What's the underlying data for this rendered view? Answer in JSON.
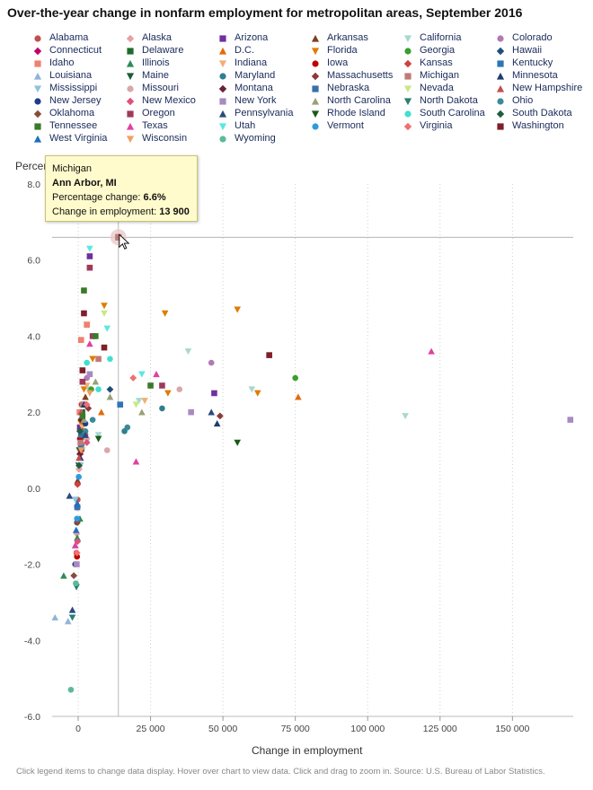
{
  "title": "Over-the-year change in nonfarm employment for metropolitan areas, September 2016",
  "footer_note": "Click legend items to change data display. Hover over chart to view data. Click and drag to zoom in. Source: U.S. Bureau of Labor Statistics.",
  "tooltip": {
    "state": "Michigan",
    "area": "Ann Arbor, MI",
    "pct_label": "Percentage change: ",
    "pct_value": "6.6%",
    "emp_label": "Change in employment: ",
    "emp_value": "13 900"
  },
  "chart_data": {
    "type": "scatter",
    "title": "Over-the-year change in nonfarm employment for metropolitan areas, September 2016",
    "xlabel": "Change in employment",
    "ylabel": "Percent",
    "xlim": [
      -9000,
      171000
    ],
    "ylim": [
      -6.0,
      8.0
    ],
    "x_ticks": [
      "0",
      "25 000",
      "50 000",
      "75 000",
      "100 000",
      "125 000",
      "150 000"
    ],
    "x_tick_values": [
      0,
      25000,
      50000,
      75000,
      100000,
      125000,
      150000
    ],
    "y_ticks": [
      "8.0",
      "6.0",
      "4.0",
      "2.0",
      "0.0",
      "-2.0",
      "-4.0",
      "-6.0"
    ],
    "y_tick_values": [
      8,
      6,
      4,
      2,
      0,
      -2,
      -4,
      -6
    ],
    "highlighted_point": {
      "series": "Michigan",
      "x": 13900,
      "y": 6.6
    },
    "crosshair": {
      "x": 13900,
      "y": 6.6
    },
    "series": [
      {
        "name": "Alabama",
        "color": "#c0504d",
        "marker": "circle",
        "points": [
          [
            1200,
            1.0
          ],
          [
            400,
            0.6
          ],
          [
            -200,
            -0.3
          ],
          [
            -600,
            -1.7
          ],
          [
            2500,
            1.4
          ]
        ]
      },
      {
        "name": "Alaska",
        "color": "#e8a0a8",
        "marker": "diamond",
        "points": [
          [
            -500,
            -1.2
          ],
          [
            300,
            0.5
          ]
        ]
      },
      {
        "name": "Arizona",
        "color": "#7030a0",
        "marker": "square",
        "points": [
          [
            4000,
            6.1
          ],
          [
            47000,
            2.5
          ],
          [
            600,
            1.6
          ],
          [
            2000,
            2.2
          ]
        ]
      },
      {
        "name": "Arkansas",
        "color": "#7f3f1f",
        "marker": "triangle",
        "points": [
          [
            2500,
            2.4
          ],
          [
            600,
            1.1
          ],
          [
            -200,
            0.2
          ],
          [
            1300,
            1.9
          ]
        ]
      },
      {
        "name": "California",
        "color": "#a8d8d0",
        "marker": "triangle-down",
        "points": [
          [
            38000,
            3.6
          ],
          [
            60000,
            2.6
          ],
          [
            113000,
            1.9
          ],
          [
            21000,
            2.3
          ],
          [
            3500,
            2.6
          ],
          [
            7000,
            1.4
          ],
          [
            1500,
            1.0
          ]
        ]
      },
      {
        "name": "Colorado",
        "color": "#b27ab2",
        "marker": "circle",
        "points": [
          [
            46000,
            3.3
          ],
          [
            3000,
            2.9
          ],
          [
            1500,
            1.5
          ]
        ]
      },
      {
        "name": "Connecticut",
        "color": "#c0006a",
        "marker": "diamond",
        "points": [
          [
            -300,
            -0.5
          ],
          [
            700,
            0.9
          ]
        ]
      },
      {
        "name": "Delaware",
        "color": "#1e6b2e",
        "marker": "square",
        "points": [
          [
            1400,
            2.0
          ]
        ]
      },
      {
        "name": "D.C.",
        "color": "#e36c09",
        "marker": "triangle",
        "points": [
          [
            76000,
            2.4
          ],
          [
            8000,
            2.0
          ]
        ]
      },
      {
        "name": "Florida",
        "color": "#e07b00",
        "marker": "triangle-down",
        "points": [
          [
            55000,
            4.7
          ],
          [
            30000,
            4.6
          ],
          [
            62000,
            2.5
          ],
          [
            31000,
            2.5
          ],
          [
            3000,
            4.3
          ],
          [
            9000,
            4.8
          ],
          [
            5000,
            3.4
          ],
          [
            2000,
            2.6
          ],
          [
            1000,
            1.7
          ]
        ]
      },
      {
        "name": "Georgia",
        "color": "#3a9e2e",
        "marker": "circle",
        "points": [
          [
            75000,
            2.9
          ],
          [
            4500,
            2.6
          ],
          [
            1000,
            1.3
          ]
        ]
      },
      {
        "name": "Hawaii",
        "color": "#1f4e79",
        "marker": "diamond",
        "points": [
          [
            11000,
            2.6
          ],
          [
            1500,
            1.8
          ]
        ]
      },
      {
        "name": "Idaho",
        "color": "#f08070",
        "marker": "square",
        "points": [
          [
            1000,
            3.9
          ],
          [
            3000,
            4.3
          ],
          [
            500,
            2.0
          ]
        ]
      },
      {
        "name": "Illinois",
        "color": "#2e8b57",
        "marker": "triangle",
        "points": [
          [
            -5000,
            -2.3
          ],
          [
            600,
            -0.8
          ],
          [
            1200,
            1.2
          ],
          [
            -300,
            -1.3
          ]
        ]
      },
      {
        "name": "Indiana",
        "color": "#f0b070",
        "marker": "triangle-down",
        "points": [
          [
            23000,
            2.3
          ],
          [
            3000,
            2.7
          ],
          [
            1500,
            1.6
          ],
          [
            800,
            0.9
          ]
        ]
      },
      {
        "name": "Iowa",
        "color": "#c00000",
        "marker": "circle",
        "points": [
          [
            1200,
            2.2
          ],
          [
            600,
            1.3
          ],
          [
            -400,
            -1.8
          ]
        ]
      },
      {
        "name": "Kansas",
        "color": "#d04040",
        "marker": "diamond",
        "points": [
          [
            1500,
            1.5
          ],
          [
            -200,
            0.1
          ]
        ]
      },
      {
        "name": "Kentucky",
        "color": "#2e75b6",
        "marker": "square",
        "points": [
          [
            14500,
            2.2
          ],
          [
            1000,
            1.1
          ]
        ]
      },
      {
        "name": "Louisiana",
        "color": "#8fb4d8",
        "marker": "triangle",
        "points": [
          [
            -8000,
            -3.4
          ],
          [
            -3500,
            -3.5
          ],
          [
            -1000,
            -1.5
          ]
        ]
      },
      {
        "name": "Maine",
        "color": "#1d5a3a",
        "marker": "triangle-down",
        "points": [
          [
            400,
            1.0
          ],
          [
            200,
            0.6
          ]
        ]
      },
      {
        "name": "Maryland",
        "color": "#2f7f8f",
        "marker": "circle",
        "points": [
          [
            16000,
            1.5
          ],
          [
            29000,
            2.1
          ],
          [
            2000,
            1.4
          ]
        ]
      },
      {
        "name": "Massachusetts",
        "color": "#8b3a3a",
        "marker": "diamond",
        "points": [
          [
            49000,
            1.9
          ],
          [
            3500,
            2.1
          ],
          [
            1000,
            1.0
          ]
        ]
      },
      {
        "name": "Michigan",
        "color": "#c07a78",
        "marker": "square",
        "points": [
          [
            13900,
            6.6
          ],
          [
            7000,
            3.4
          ],
          [
            1500,
            2.2
          ],
          [
            800,
            1.2
          ]
        ]
      },
      {
        "name": "Minnesota",
        "color": "#1f3c6b",
        "marker": "triangle",
        "points": [
          [
            48000,
            1.7
          ],
          [
            2000,
            2.2
          ],
          [
            800,
            0.8
          ]
        ]
      },
      {
        "name": "Mississippi",
        "color": "#8ec4dc",
        "marker": "triangle-down",
        "points": [
          [
            -1000,
            -0.3
          ],
          [
            800,
            0.6
          ]
        ]
      },
      {
        "name": "Missouri",
        "color": "#d8a8a8",
        "marker": "circle",
        "points": [
          [
            35000,
            2.6
          ],
          [
            10000,
            1.0
          ],
          [
            3000,
            1.3
          ]
        ]
      },
      {
        "name": "Montana",
        "color": "#6b1f3a",
        "marker": "diamond",
        "points": [
          [
            600,
            0.9
          ],
          [
            1000,
            1.8
          ]
        ]
      },
      {
        "name": "Nebraska",
        "color": "#3a6fa8",
        "marker": "square",
        "points": [
          [
            1000,
            1.4
          ],
          [
            -300,
            -0.5
          ]
        ]
      },
      {
        "name": "Nevada",
        "color": "#c8e888",
        "marker": "triangle-down",
        "points": [
          [
            20000,
            2.2
          ],
          [
            9000,
            4.6
          ]
        ]
      },
      {
        "name": "New Hampshire",
        "color": "#c0504d",
        "marker": "triangle",
        "points": [
          [
            1000,
            2.0
          ],
          [
            300,
            0.8
          ]
        ]
      },
      {
        "name": "New Jersey",
        "color": "#1f3c8b",
        "marker": "circle",
        "points": [
          [
            -400,
            -0.9
          ],
          [
            -1000,
            -2.0
          ],
          [
            2500,
            1.7
          ]
        ]
      },
      {
        "name": "New Mexico",
        "color": "#e0507a",
        "marker": "diamond",
        "points": [
          [
            -200,
            -1.4
          ],
          [
            3000,
            1.2
          ]
        ]
      },
      {
        "name": "New York",
        "color": "#a98ac0",
        "marker": "square",
        "points": [
          [
            170000,
            1.8
          ],
          [
            39000,
            2.0
          ],
          [
            4000,
            3.0
          ],
          [
            -500,
            -2.0
          ]
        ]
      },
      {
        "name": "North Carolina",
        "color": "#9aa07a",
        "marker": "triangle",
        "points": [
          [
            22000,
            2.0
          ],
          [
            11000,
            2.4
          ],
          [
            6000,
            2.8
          ],
          [
            2000,
            1.8
          ]
        ]
      },
      {
        "name": "North Dakota",
        "color": "#2a7f6f",
        "marker": "triangle-down",
        "points": [
          [
            -2000,
            -3.4
          ],
          [
            -600,
            -2.6
          ]
        ]
      },
      {
        "name": "Ohio",
        "color": "#3a8a9a",
        "marker": "circle",
        "points": [
          [
            17000,
            1.6
          ],
          [
            5000,
            1.8
          ],
          [
            2500,
            1.5
          ]
        ]
      },
      {
        "name": "Oklahoma",
        "color": "#8b4a3a",
        "marker": "diamond",
        "points": [
          [
            -1500,
            -2.3
          ],
          [
            -300,
            -0.9
          ]
        ]
      },
      {
        "name": "Oregon",
        "color": "#9e3a5a",
        "marker": "square",
        "points": [
          [
            29000,
            2.7
          ],
          [
            4000,
            5.8
          ],
          [
            5000,
            4.0
          ],
          [
            1500,
            2.8
          ]
        ]
      },
      {
        "name": "Pennsylvania",
        "color": "#2a4a7f",
        "marker": "triangle",
        "points": [
          [
            46000,
            2.0
          ],
          [
            2500,
            1.4
          ],
          [
            -2000,
            -3.2
          ],
          [
            -3000,
            -0.2
          ]
        ]
      },
      {
        "name": "Rhode Island",
        "color": "#1a5a1a",
        "marker": "triangle-down",
        "points": [
          [
            55000,
            1.2
          ],
          [
            7000,
            1.3
          ]
        ]
      },
      {
        "name": "South Carolina",
        "color": "#40e0d0",
        "marker": "circle",
        "points": [
          [
            3000,
            3.3
          ],
          [
            7000,
            2.6
          ],
          [
            11000,
            3.4
          ]
        ]
      },
      {
        "name": "South Dakota",
        "color": "#1f5f3f",
        "marker": "diamond",
        "points": [
          [
            600,
            1.5
          ],
          [
            300,
            0.6
          ]
        ]
      },
      {
        "name": "Tennessee",
        "color": "#3a7a2a",
        "marker": "square",
        "points": [
          [
            2000,
            5.2
          ],
          [
            25000,
            2.7
          ],
          [
            6000,
            4.0
          ],
          [
            1500,
            1.9
          ]
        ]
      },
      {
        "name": "Texas",
        "color": "#e040a0",
        "marker": "triangle",
        "points": [
          [
            122000,
            3.6
          ],
          [
            27000,
            3.0
          ],
          [
            4000,
            3.8
          ],
          [
            -1000,
            -1.5
          ],
          [
            20000,
            0.7
          ]
        ]
      },
      {
        "name": "Utah",
        "color": "#5ae8e0",
        "marker": "triangle-down",
        "points": [
          [
            4000,
            6.3
          ],
          [
            22000,
            3.0
          ],
          [
            10000,
            4.2
          ]
        ]
      },
      {
        "name": "Vermont",
        "color": "#2e9ae0",
        "marker": "circle",
        "points": [
          [
            -400,
            -0.8
          ],
          [
            200,
            0.3
          ]
        ]
      },
      {
        "name": "Virginia",
        "color": "#f07070",
        "marker": "diamond",
        "points": [
          [
            19000,
            2.9
          ],
          [
            3000,
            2.2
          ],
          [
            -400,
            -1.7
          ]
        ]
      },
      {
        "name": "Washington",
        "color": "#7f1f2a",
        "marker": "square",
        "points": [
          [
            66000,
            3.5
          ],
          [
            9000,
            3.7
          ],
          [
            2000,
            4.6
          ],
          [
            1500,
            3.1
          ]
        ]
      },
      {
        "name": "West Virginia",
        "color": "#1f6fc0",
        "marker": "triangle",
        "points": [
          [
            -700,
            -1.1
          ],
          [
            -300,
            -0.4
          ]
        ]
      },
      {
        "name": "Wisconsin",
        "color": "#f0a060",
        "marker": "triangle-down",
        "points": [
          [
            4000,
            2.5
          ],
          [
            1000,
            1.0
          ]
        ]
      },
      {
        "name": "Wyoming",
        "color": "#5aba9a",
        "marker": "circle",
        "points": [
          [
            -2500,
            -5.3
          ],
          [
            -800,
            -2.5
          ]
        ]
      }
    ]
  }
}
